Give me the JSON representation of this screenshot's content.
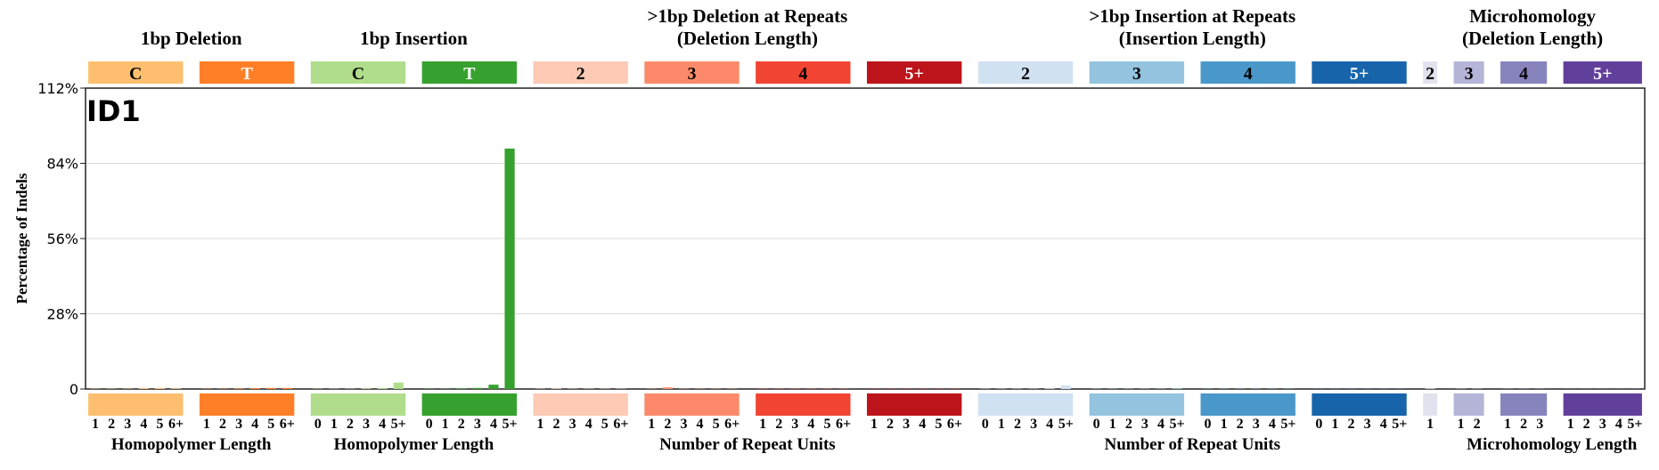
{
  "chart_data": {
    "type": "bar",
    "panel_label": "ID1",
    "ylabel": "Percentage of Indels",
    "ylim": [
      0,
      112
    ],
    "yticks": [
      0,
      28,
      56,
      84,
      112
    ],
    "ytick_labels": [
      "0",
      "28%",
      "56%",
      "84%",
      "112%"
    ],
    "grid": true,
    "group_titles": [
      {
        "line1": "1bp Deletion",
        "line2": ""
      },
      {
        "line1": "1bp Insertion",
        "line2": ""
      },
      {
        "line1": ">1bp Deletion at Repeats",
        "line2": "(Deletion Length)"
      },
      {
        "line1": ">1bp Insertion at Repeats",
        "line2": "(Insertion Length)"
      },
      {
        "line1": "Microhomology",
        "line2": "(Deletion Length)"
      }
    ],
    "group_xlabels": [
      "Homopolymer Length",
      "Homopolymer Length",
      "Number of Repeat Units",
      "Number of Repeat Units",
      "Microhomology Length"
    ],
    "categories": [
      {
        "label": "C",
        "color": "#FDBF6F",
        "text_color": "#000000",
        "group": 0,
        "ticks": [
          "1",
          "2",
          "3",
          "4",
          "5",
          "6+"
        ],
        "values": [
          0.1,
          0.1,
          0.1,
          0.3,
          0.3,
          0.2
        ]
      },
      {
        "label": "T",
        "color": "#FF7F27",
        "text_color": "#ffffff",
        "group": 0,
        "ticks": [
          "1",
          "2",
          "3",
          "4",
          "5",
          "6+"
        ],
        "values": [
          0.1,
          0.1,
          0.2,
          0.3,
          0.4,
          0.4
        ]
      },
      {
        "label": "C",
        "color": "#B0DD8B",
        "text_color": "#000000",
        "group": 1,
        "ticks": [
          "0",
          "1",
          "2",
          "3",
          "4",
          "5+"
        ],
        "values": [
          0.1,
          0.1,
          0.1,
          0.2,
          0.3,
          2.4
        ]
      },
      {
        "label": "T",
        "color": "#36A12E",
        "text_color": "#ffffff",
        "group": 1,
        "ticks": [
          "0",
          "1",
          "2",
          "3",
          "4",
          "5+"
        ],
        "values": [
          0.1,
          0.1,
          0.2,
          0.4,
          1.6,
          89.5
        ]
      },
      {
        "label": "2",
        "color": "#FDCAB5",
        "text_color": "#000000",
        "group": 2,
        "ticks": [
          "1",
          "2",
          "3",
          "4",
          "5",
          "6+"
        ],
        "values": [
          0.1,
          0.2,
          0.1,
          0.1,
          0.1,
          0.1
        ]
      },
      {
        "label": "3",
        "color": "#FC8A6A",
        "text_color": "#000000",
        "group": 2,
        "ticks": [
          "1",
          "2",
          "3",
          "4",
          "5",
          "6+"
        ],
        "values": [
          0.1,
          0.6,
          0.1,
          0.1,
          0.1,
          0.1
        ]
      },
      {
        "label": "4",
        "color": "#F14432",
        "text_color": "#000000",
        "group": 2,
        "ticks": [
          "1",
          "2",
          "3",
          "4",
          "5",
          "6+"
        ],
        "values": [
          0.1,
          0.1,
          0.1,
          0.1,
          0.1,
          0.1
        ]
      },
      {
        "label": "5+",
        "color": "#BC141A",
        "text_color": "#ffffff",
        "group": 2,
        "ticks": [
          "1",
          "2",
          "3",
          "4",
          "5",
          "6+"
        ],
        "values": [
          0.1,
          0.1,
          0.1,
          0.1,
          0.1,
          0.1
        ]
      },
      {
        "label": "2",
        "color": "#D0E1F2",
        "text_color": "#000000",
        "group": 3,
        "ticks": [
          "0",
          "1",
          "2",
          "3",
          "4",
          "5+"
        ],
        "values": [
          0.1,
          0.1,
          0.1,
          0.1,
          0.2,
          1.3
        ]
      },
      {
        "label": "3",
        "color": "#94C4DF",
        "text_color": "#000000",
        "group": 3,
        "ticks": [
          "0",
          "1",
          "2",
          "3",
          "4",
          "5+"
        ],
        "values": [
          0.1,
          0.1,
          0.1,
          0.1,
          0.1,
          0.2
        ]
      },
      {
        "label": "4",
        "color": "#4A98C9",
        "text_color": "#000000",
        "group": 3,
        "ticks": [
          "0",
          "1",
          "2",
          "3",
          "4",
          "5+"
        ],
        "values": [
          0.1,
          0.1,
          0.1,
          0.1,
          0.1,
          0.1
        ]
      },
      {
        "label": "5+",
        "color": "#1764AB",
        "text_color": "#ffffff",
        "group": 3,
        "ticks": [
          "0",
          "1",
          "2",
          "3",
          "4",
          "5+"
        ],
        "values": [
          0.1,
          0.1,
          0.1,
          0.1,
          0.1,
          0.1
        ]
      },
      {
        "label": "2",
        "color": "#E2E2EF",
        "text_color": "#000000",
        "group": 4,
        "ticks": [
          "1"
        ],
        "values": [
          0.2
        ]
      },
      {
        "label": "3",
        "color": "#B5B5D8",
        "text_color": "#000000",
        "group": 4,
        "ticks": [
          "1",
          "2"
        ],
        "values": [
          0.1,
          0.1
        ]
      },
      {
        "label": "4",
        "color": "#8683BD",
        "text_color": "#000000",
        "group": 4,
        "ticks": [
          "1",
          "2",
          "3"
        ],
        "values": [
          0.1,
          0.1,
          0.1
        ]
      },
      {
        "label": "5+",
        "color": "#61409B",
        "text_color": "#ffffff",
        "group": 4,
        "ticks": [
          "1",
          "2",
          "3",
          "4",
          "5+"
        ],
        "values": [
          0.1,
          0.1,
          0.1,
          0.1,
          0.1
        ]
      }
    ]
  }
}
